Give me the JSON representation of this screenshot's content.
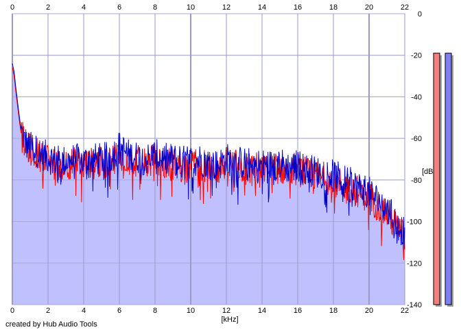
{
  "app": {
    "credit": "created by Hub Audio Tools"
  },
  "chart_data": {
    "type": "area",
    "title": "",
    "xlabel": "[kHz]",
    "ylabel": "[dB]",
    "xlim": [
      0,
      22
    ],
    "ylim": [
      -140,
      0
    ],
    "x_ticks": [
      0,
      2,
      4,
      6,
      8,
      10,
      12,
      14,
      16,
      18,
      20,
      22
    ],
    "x_tick_labels": [
      "0",
      "2",
      "4",
      "6",
      "8",
      "10",
      "12",
      "14",
      "16",
      "18",
      "20",
      "22"
    ],
    "y_ticks": [
      0,
      -20,
      -40,
      -60,
      -80,
      -100,
      -120,
      -140
    ],
    "y_tick_labels": [
      "0",
      "-20",
      "-40",
      "-60",
      "-80",
      "-100",
      "-120",
      "-140"
    ],
    "grid": true,
    "series": [
      {
        "color": "#ff0000",
        "x": [
          0,
          0.1,
          0.2,
          0.3,
          0.4,
          0.5,
          0.7,
          0.9,
          1.2,
          1.5,
          2,
          2.5,
          3,
          3.5,
          4,
          4.5,
          5,
          5.5,
          6,
          6.5,
          7,
          7.5,
          8,
          8.5,
          9,
          9.5,
          10,
          10.5,
          11,
          11.5,
          12,
          12.5,
          13,
          13.5,
          14,
          14.5,
          15,
          15.5,
          16,
          16.5,
          17,
          17.5,
          18,
          18.5,
          19,
          19.5,
          20,
          20.5,
          21,
          21.5,
          22
        ],
        "values": [
          -26,
          -30,
          -38,
          -45,
          -52,
          -58,
          -63,
          -65,
          -66,
          -68,
          -71,
          -73,
          -72,
          -72,
          -73,
          -72,
          -72,
          -71,
          -67,
          -70,
          -71,
          -72,
          -70,
          -72,
          -72,
          -73,
          -73,
          -72,
          -74,
          -75,
          -72,
          -73,
          -74,
          -74,
          -75,
          -75,
          -74,
          -76,
          -75,
          -77,
          -78,
          -79,
          -80,
          -82,
          -84,
          -86,
          -88,
          -92,
          -96,
          -102,
          -108
        ]
      },
      {
        "color": "#0000cc",
        "x": [
          0,
          0.1,
          0.2,
          0.3,
          0.4,
          0.5,
          0.7,
          0.9,
          1.2,
          1.5,
          2,
          2.5,
          3,
          3.5,
          4,
          4.5,
          5,
          5.5,
          6,
          6.5,
          7,
          7.5,
          8,
          8.5,
          9,
          9.5,
          10,
          10.5,
          11,
          11.5,
          12,
          12.5,
          13,
          13.5,
          14,
          14.5,
          15,
          15.5,
          16,
          16.5,
          17,
          17.5,
          18,
          18.5,
          19,
          19.5,
          20,
          20.5,
          21,
          21.5,
          22
        ],
        "values": [
          -24,
          -28,
          -36,
          -43,
          -50,
          -56,
          -62,
          -64,
          -65,
          -67,
          -69,
          -71,
          -71,
          -70,
          -71,
          -70,
          -70,
          -69,
          -64,
          -68,
          -69,
          -70,
          -68,
          -70,
          -70,
          -71,
          -71,
          -70,
          -72,
          -73,
          -70,
          -71,
          -72,
          -72,
          -73,
          -73,
          -72,
          -74,
          -73,
          -75,
          -76,
          -77,
          -78,
          -80,
          -82,
          -84,
          -86,
          -90,
          -94,
          -100,
          -106
        ]
      }
    ],
    "level_meters": [
      {
        "color": "#f08080",
        "value_db": -19
      },
      {
        "color": "#8080f0",
        "value_db": -19
      }
    ]
  }
}
